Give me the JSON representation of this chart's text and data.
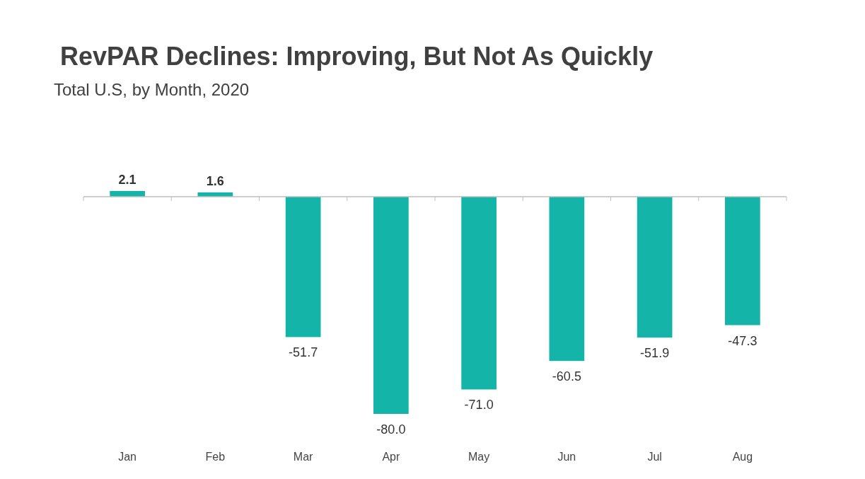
{
  "chart_data": {
    "type": "bar",
    "title": "RevPAR Declines: Improving, But Not As Quickly",
    "subtitle": "Total U.S, by Month, 2020",
    "categories": [
      "Jan",
      "Feb",
      "Mar",
      "Apr",
      "May",
      "Jun",
      "Jul",
      "Aug"
    ],
    "values": [
      2.1,
      1.6,
      -51.7,
      -80.0,
      -71.0,
      -60.5,
      -51.9,
      -47.3
    ],
    "value_labels": [
      "2.1",
      "1.6",
      "-51.7",
      "-80.0",
      "-71.0",
      "-60.5",
      "-51.9",
      "-47.3"
    ],
    "color": "#14b5a8"
  }
}
